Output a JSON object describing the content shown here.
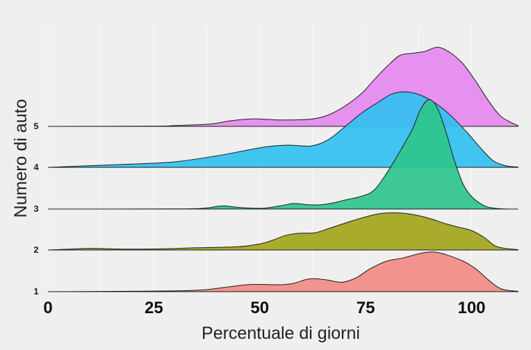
{
  "chart_data": {
    "type": "area",
    "subtype": "ridgeline",
    "title": "",
    "xlabel": "Percentuale di giorni",
    "ylabel": "Numero di auto",
    "xlim": [
      0,
      111
    ],
    "xticks": [
      0,
      25,
      50,
      75,
      100
    ],
    "grid": true,
    "legend": "none",
    "series": [
      {
        "name": "1",
        "color": "#f28b84",
        "points": [
          [
            0,
            0
          ],
          [
            10,
            0.005
          ],
          [
            20,
            0.015
          ],
          [
            30,
            0.03
          ],
          [
            37,
            0.07
          ],
          [
            42,
            0.16
          ],
          [
            47,
            0.25
          ],
          [
            51,
            0.26
          ],
          [
            55,
            0.25
          ],
          [
            58,
            0.3
          ],
          [
            61,
            0.44
          ],
          [
            63,
            0.47
          ],
          [
            66,
            0.42
          ],
          [
            68,
            0.36
          ],
          [
            70,
            0.35
          ],
          [
            73,
            0.52
          ],
          [
            76,
            0.82
          ],
          [
            80,
            1.1
          ],
          [
            84,
            1.22
          ],
          [
            88,
            1.38
          ],
          [
            91,
            1.43
          ],
          [
            94,
            1.33
          ],
          [
            98,
            1.1
          ],
          [
            101,
            0.82
          ],
          [
            104,
            0.42
          ],
          [
            107,
            0.1
          ],
          [
            111,
            0.01
          ]
        ]
      },
      {
        "name": "2",
        "color": "#a3a51c",
        "points": [
          [
            0,
            0
          ],
          [
            5,
            0.03
          ],
          [
            10,
            0.06
          ],
          [
            15,
            0.04
          ],
          [
            20,
            0.03
          ],
          [
            27,
            0.04
          ],
          [
            35,
            0.08
          ],
          [
            45,
            0.12
          ],
          [
            50,
            0.22
          ],
          [
            53,
            0.35
          ],
          [
            56,
            0.52
          ],
          [
            59,
            0.6
          ],
          [
            63,
            0.62
          ],
          [
            66,
            0.76
          ],
          [
            70,
            0.96
          ],
          [
            74,
            1.15
          ],
          [
            78,
            1.3
          ],
          [
            82,
            1.34
          ],
          [
            86,
            1.28
          ],
          [
            90,
            1.14
          ],
          [
            94,
            0.94
          ],
          [
            97,
            0.82
          ],
          [
            100,
            0.7
          ],
          [
            103,
            0.45
          ],
          [
            106,
            0.12
          ],
          [
            111,
            0.01
          ]
        ]
      },
      {
        "name": "3",
        "color": "#2fc48c",
        "points": [
          [
            0,
            0
          ],
          [
            30,
            0.005
          ],
          [
            37,
            0.03
          ],
          [
            40,
            0.1
          ],
          [
            42,
            0.11
          ],
          [
            45,
            0.06
          ],
          [
            48,
            0.03
          ],
          [
            51,
            0.03
          ],
          [
            55,
            0.12
          ],
          [
            58,
            0.2
          ],
          [
            61,
            0.16
          ],
          [
            64,
            0.15
          ],
          [
            67,
            0.21
          ],
          [
            70,
            0.32
          ],
          [
            74,
            0.46
          ],
          [
            77,
            0.68
          ],
          [
            80,
            1.3
          ],
          [
            83,
            2.05
          ],
          [
            86,
            2.87
          ],
          [
            88,
            3.6
          ],
          [
            90,
            3.94
          ],
          [
            92,
            3.62
          ],
          [
            94,
            2.75
          ],
          [
            96,
            1.72
          ],
          [
            98,
            0.9
          ],
          [
            100,
            0.45
          ],
          [
            103,
            0.12
          ],
          [
            106,
            0.02
          ],
          [
            111,
            0
          ]
        ]
      },
      {
        "name": "4",
        "color": "#33c0f0",
        "points": [
          [
            0,
            0
          ],
          [
            10,
            0.06
          ],
          [
            20,
            0.12
          ],
          [
            30,
            0.2
          ],
          [
            40,
            0.42
          ],
          [
            47,
            0.62
          ],
          [
            52,
            0.75
          ],
          [
            57,
            0.8
          ],
          [
            62,
            0.77
          ],
          [
            66,
            0.98
          ],
          [
            70,
            1.45
          ],
          [
            74,
            1.95
          ],
          [
            78,
            2.35
          ],
          [
            81,
            2.63
          ],
          [
            84,
            2.72
          ],
          [
            87,
            2.65
          ],
          [
            90,
            2.45
          ],
          [
            93,
            2.14
          ],
          [
            96,
            1.73
          ],
          [
            99,
            1.25
          ],
          [
            102,
            0.72
          ],
          [
            105,
            0.25
          ],
          [
            108,
            0.06
          ],
          [
            111,
            0.01
          ]
        ]
      },
      {
        "name": "5",
        "color": "#e589ef",
        "points": [
          [
            0,
            0
          ],
          [
            25,
            0.01
          ],
          [
            30,
            0.03
          ],
          [
            38,
            0.08
          ],
          [
            43,
            0.2
          ],
          [
            48,
            0.27
          ],
          [
            52,
            0.25
          ],
          [
            56,
            0.23
          ],
          [
            62,
            0.26
          ],
          [
            66,
            0.4
          ],
          [
            70,
            0.72
          ],
          [
            74,
            1.18
          ],
          [
            77,
            1.68
          ],
          [
            80,
            2.15
          ],
          [
            83,
            2.55
          ],
          [
            86,
            2.63
          ],
          [
            89,
            2.7
          ],
          [
            92,
            2.85
          ],
          [
            95,
            2.65
          ],
          [
            98,
            2.25
          ],
          [
            101,
            1.62
          ],
          [
            104,
            0.92
          ],
          [
            107,
            0.35
          ],
          [
            111,
            0.02
          ]
        ]
      }
    ]
  }
}
